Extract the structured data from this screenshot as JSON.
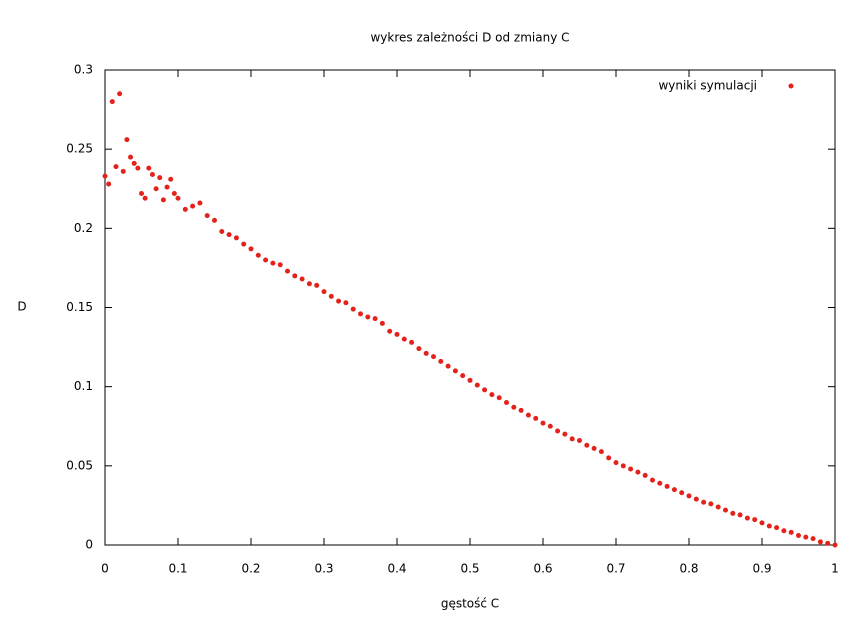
{
  "chart_data": {
    "type": "scatter",
    "title": "wykres zależności D od zmiany C",
    "x_label": "gęstość C",
    "y_label": "D",
    "x": [
      0,
      0.005,
      0.01,
      0.015,
      0.02,
      0.025,
      0.03,
      0.035,
      0.04,
      0.045,
      0.05,
      0.055,
      0.06,
      0.065,
      0.07,
      0.075,
      0.08,
      0.085,
      0.09,
      0.095,
      0.1,
      0.11,
      0.12,
      0.13,
      0.14,
      0.15,
      0.16,
      0.17,
      0.18,
      0.19,
      0.2,
      0.21,
      0.22,
      0.23,
      0.24,
      0.25,
      0.26,
      0.27,
      0.28,
      0.29,
      0.3,
      0.31,
      0.32,
      0.33,
      0.34,
      0.35,
      0.36,
      0.37,
      0.38,
      0.39,
      0.4,
      0.41,
      0.42,
      0.43,
      0.44,
      0.45,
      0.46,
      0.47,
      0.48,
      0.49,
      0.5,
      0.51,
      0.52,
      0.53,
      0.54,
      0.55,
      0.56,
      0.57,
      0.58,
      0.59,
      0.6,
      0.61,
      0.62,
      0.63,
      0.64,
      0.65,
      0.66,
      0.67,
      0.68,
      0.69,
      0.7,
      0.71,
      0.72,
      0.73,
      0.74,
      0.75,
      0.76,
      0.77,
      0.78,
      0.79,
      0.8,
      0.81,
      0.82,
      0.83,
      0.84,
      0.85,
      0.86,
      0.87,
      0.88,
      0.89,
      0.9,
      0.91,
      0.92,
      0.93,
      0.94,
      0.95,
      0.96,
      0.97,
      0.98,
      0.99,
      1
    ],
    "series": [
      {
        "name": "wyniki symulacji",
        "color": "#e3231b",
        "values": [
          0.233,
          0.228,
          0.28,
          0.239,
          0.285,
          0.236,
          0.256,
          0.245,
          0.241,
          0.238,
          0.222,
          0.219,
          0.238,
          0.234,
          0.225,
          0.232,
          0.218,
          0.226,
          0.231,
          0.222,
          0.219,
          0.212,
          0.214,
          0.216,
          0.208,
          0.205,
          0.198,
          0.196,
          0.194,
          0.19,
          0.187,
          0.183,
          0.18,
          0.178,
          0.177,
          0.173,
          0.17,
          0.168,
          0.165,
          0.164,
          0.16,
          0.157,
          0.154,
          0.153,
          0.149,
          0.146,
          0.144,
          0.143,
          0.14,
          0.135,
          0.133,
          0.13,
          0.128,
          0.124,
          0.121,
          0.119,
          0.116,
          0.113,
          0.11,
          0.107,
          0.104,
          0.101,
          0.098,
          0.095,
          0.093,
          0.09,
          0.087,
          0.085,
          0.082,
          0.08,
          0.077,
          0.075,
          0.072,
          0.07,
          0.067,
          0.066,
          0.063,
          0.061,
          0.059,
          0.055,
          0.052,
          0.05,
          0.048,
          0.046,
          0.044,
          0.041,
          0.039,
          0.037,
          0.035,
          0.033,
          0.031,
          0.029,
          0.027,
          0.026,
          0.024,
          0.022,
          0.02,
          0.019,
          0.017,
          0.016,
          0.014,
          0.012,
          0.011,
          0.009,
          0.008,
          0.006,
          0.005,
          0.004,
          0.002,
          0.001,
          0
        ]
      }
    ],
    "xlim": [
      0,
      1
    ],
    "ylim": [
      0,
      0.3
    ],
    "xticks": [
      0,
      0.1,
      0.2,
      0.3,
      0.4,
      0.5,
      0.6,
      0.7,
      0.8,
      0.9,
      1
    ],
    "yticks": [
      0,
      0.05,
      0.1,
      0.15,
      0.2,
      0.25,
      0.3
    ],
    "legend": "top-right"
  }
}
